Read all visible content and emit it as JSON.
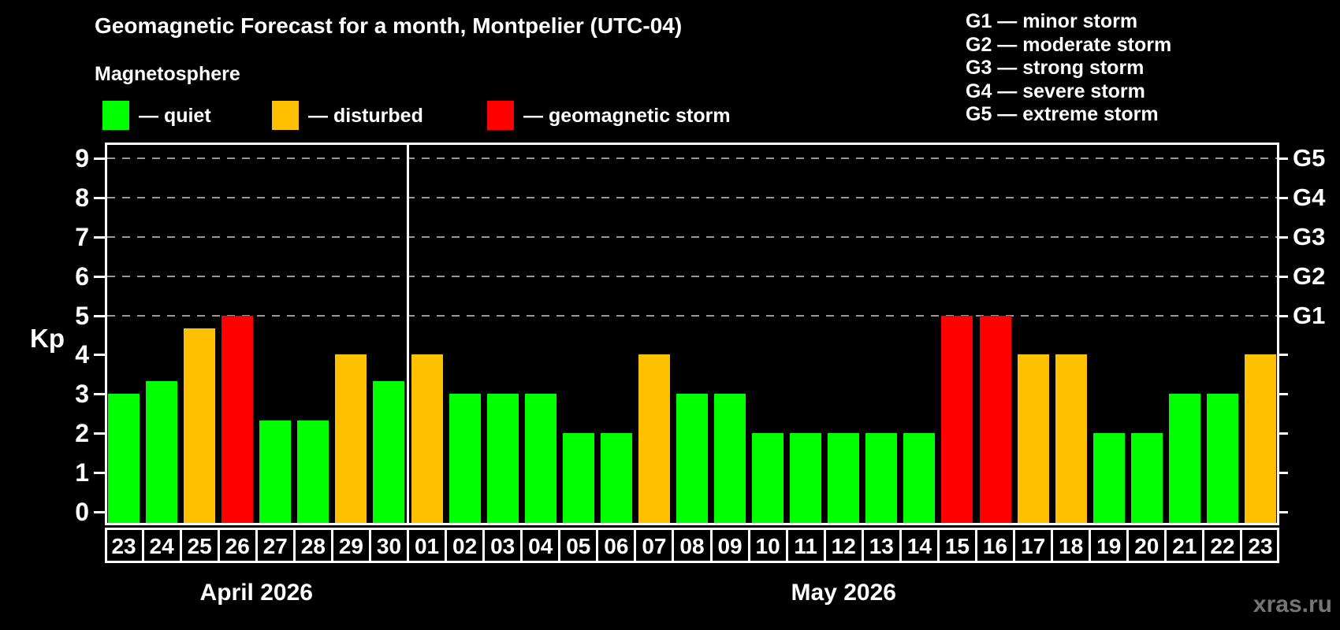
{
  "title": "Geomagnetic Forecast for a month, Montpelier (UTC-04)",
  "subtitle": "Magnetosphere",
  "magnetosphere_legend": [
    {
      "label": "— quiet",
      "status": "quiet",
      "color": "#00ff00"
    },
    {
      "label": "— disturbed",
      "status": "disturbed",
      "color": "#ffc000"
    },
    {
      "label": "— geomagnetic storm",
      "status": "storm",
      "color": "#ff0000"
    }
  ],
  "storm_scale_legend": [
    "G1 — minor storm",
    "G2 — moderate storm",
    "G3 — strong storm",
    "G4 — severe storm",
    "G5 — extreme storm"
  ],
  "watermark": "xras.ru",
  "chart_data": {
    "type": "bar",
    "title": "Geomagnetic Forecast for a month, Montpelier (UTC-04)",
    "ylabel": "Kp",
    "ylim": [
      0,
      9
    ],
    "yticks": [
      0,
      1,
      2,
      3,
      4,
      5,
      6,
      7,
      8,
      9
    ],
    "grid": "dashed horizontal at Kp 5-9 only",
    "gridline_kp_levels": [
      5,
      6,
      7,
      8,
      9
    ],
    "right_axis": [
      {
        "kp": 5,
        "label": "G1"
      },
      {
        "kp": 6,
        "label": "G2"
      },
      {
        "kp": 7,
        "label": "G3"
      },
      {
        "kp": 8,
        "label": "G4"
      },
      {
        "kp": 9,
        "label": "G5"
      }
    ],
    "status_colors": {
      "quiet": "#00ff00",
      "disturbed": "#ffc000",
      "storm": "#ff0000"
    },
    "months": [
      {
        "label": "April 2026",
        "bars": [
          {
            "day": "23",
            "kp": 3.0,
            "status": "quiet"
          },
          {
            "day": "24",
            "kp": 3.33,
            "status": "quiet"
          },
          {
            "day": "25",
            "kp": 4.67,
            "status": "disturbed"
          },
          {
            "day": "26",
            "kp": 5.0,
            "status": "storm"
          },
          {
            "day": "27",
            "kp": 2.33,
            "status": "quiet"
          },
          {
            "day": "28",
            "kp": 2.33,
            "status": "quiet"
          },
          {
            "day": "29",
            "kp": 4.0,
            "status": "disturbed"
          },
          {
            "day": "30",
            "kp": 3.33,
            "status": "quiet"
          }
        ]
      },
      {
        "label": "May 2026",
        "bars": [
          {
            "day": "01",
            "kp": 4.0,
            "status": "disturbed"
          },
          {
            "day": "02",
            "kp": 3.0,
            "status": "quiet"
          },
          {
            "day": "03",
            "kp": 3.0,
            "status": "quiet"
          },
          {
            "day": "04",
            "kp": 3.0,
            "status": "quiet"
          },
          {
            "day": "05",
            "kp": 2.0,
            "status": "quiet"
          },
          {
            "day": "06",
            "kp": 2.0,
            "status": "quiet"
          },
          {
            "day": "07",
            "kp": 4.0,
            "status": "disturbed"
          },
          {
            "day": "08",
            "kp": 3.0,
            "status": "quiet"
          },
          {
            "day": "09",
            "kp": 3.0,
            "status": "quiet"
          },
          {
            "day": "10",
            "kp": 2.0,
            "status": "quiet"
          },
          {
            "day": "11",
            "kp": 2.0,
            "status": "quiet"
          },
          {
            "day": "12",
            "kp": 2.0,
            "status": "quiet"
          },
          {
            "day": "13",
            "kp": 2.0,
            "status": "quiet"
          },
          {
            "day": "14",
            "kp": 2.0,
            "status": "quiet"
          },
          {
            "day": "15",
            "kp": 5.0,
            "status": "storm"
          },
          {
            "day": "16",
            "kp": 5.0,
            "status": "storm"
          },
          {
            "day": "17",
            "kp": 4.0,
            "status": "disturbed"
          },
          {
            "day": "18",
            "kp": 4.0,
            "status": "disturbed"
          },
          {
            "day": "19",
            "kp": 2.0,
            "status": "quiet"
          },
          {
            "day": "20",
            "kp": 2.0,
            "status": "quiet"
          },
          {
            "day": "21",
            "kp": 3.0,
            "status": "quiet"
          },
          {
            "day": "22",
            "kp": 3.0,
            "status": "quiet"
          },
          {
            "day": "23",
            "kp": 4.0,
            "status": "disturbed"
          }
        ]
      }
    ]
  }
}
